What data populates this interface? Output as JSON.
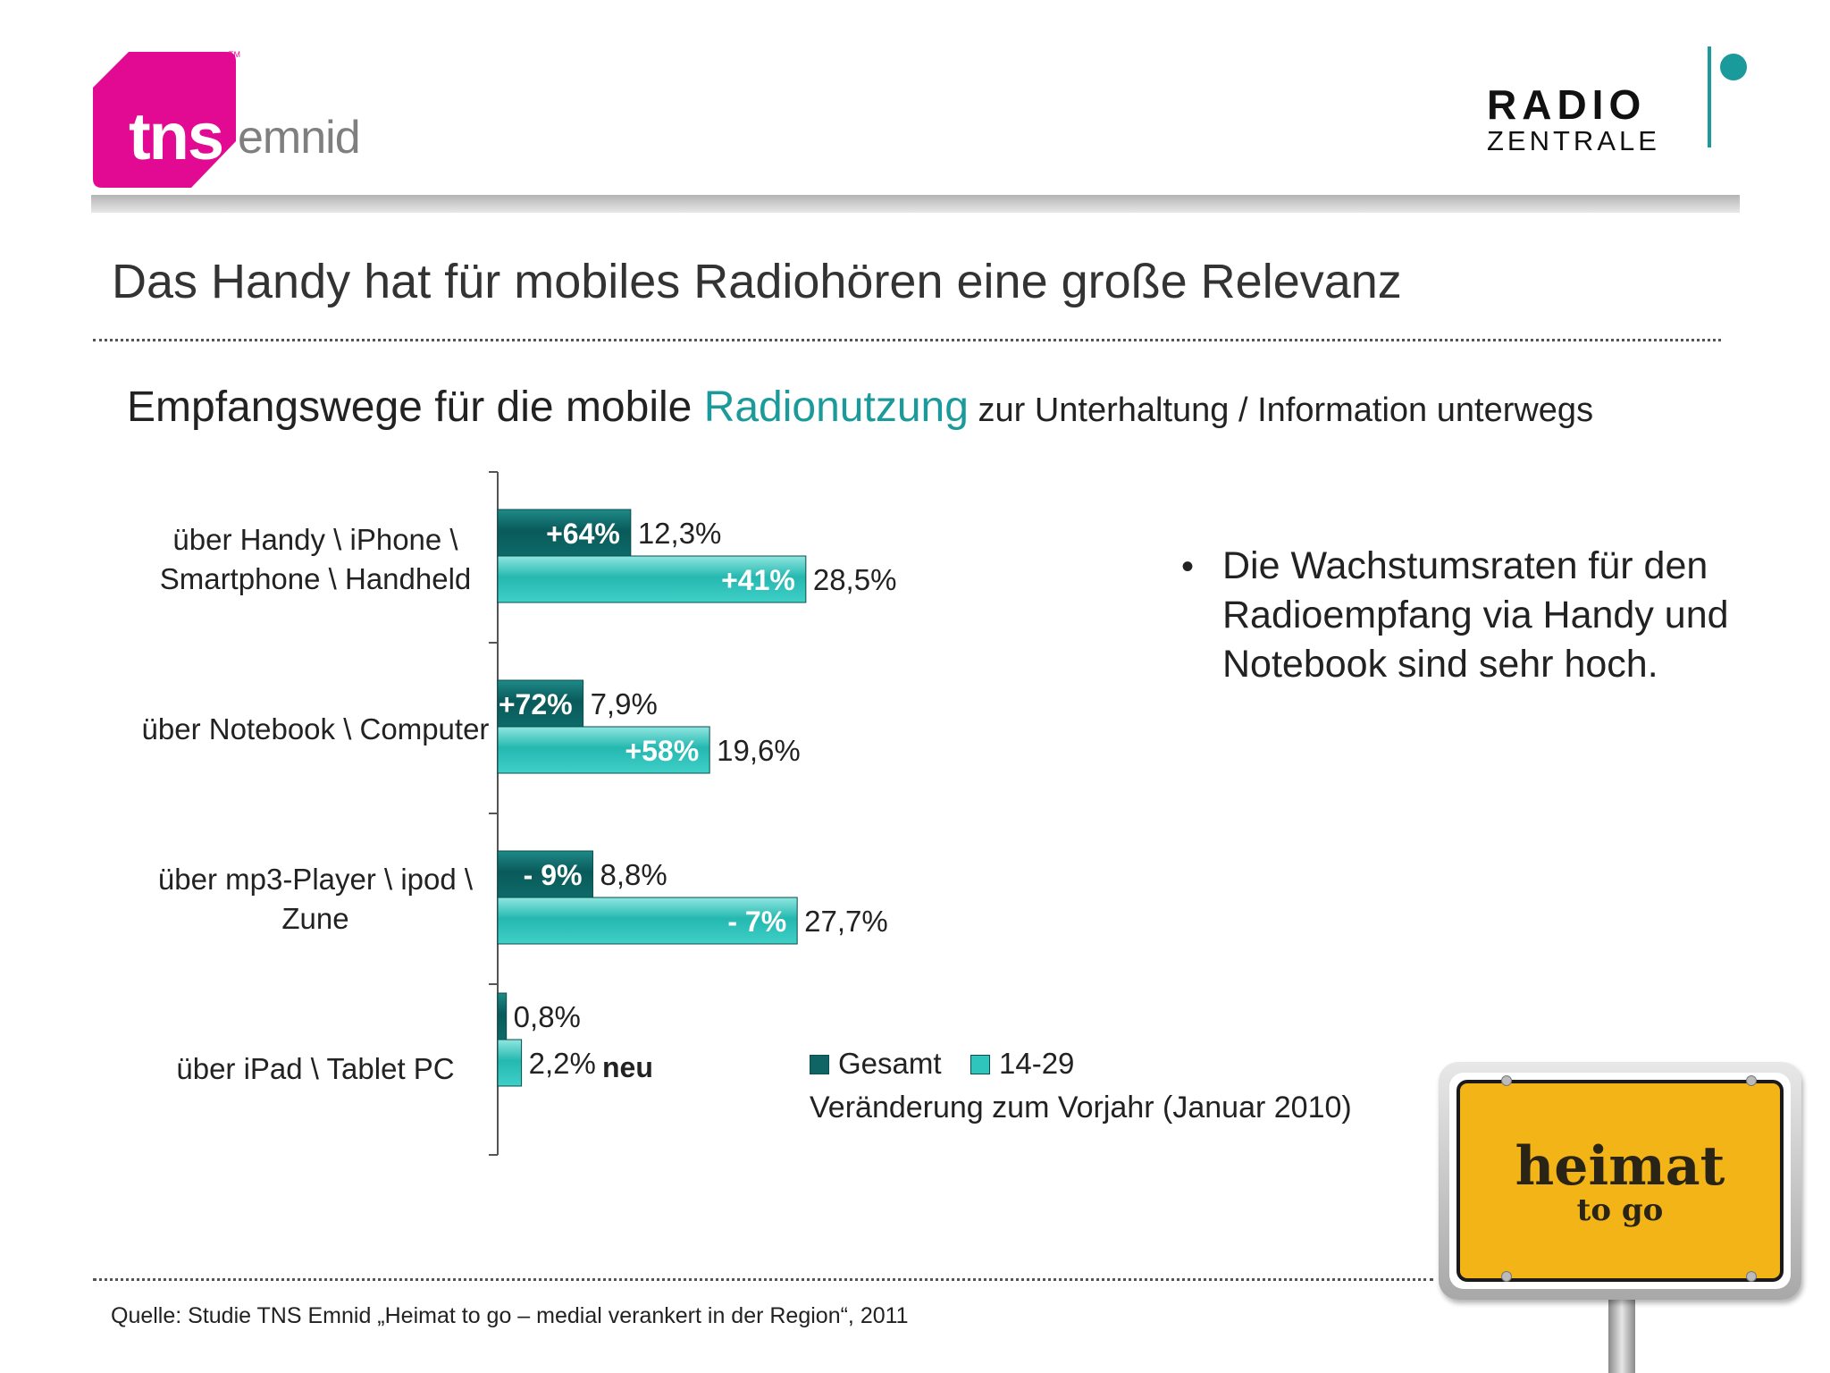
{
  "header": {
    "tns_logo_text": "tns",
    "tns_tm": "TM",
    "tns_emnid": "emnid",
    "rz_radio": "RADIO",
    "rz_zentrale": "ZENTRALE"
  },
  "title": "Das Handy hat für mobiles Radiohören eine große Relevanz",
  "subtitle": {
    "part1": "Empfangswege für die mobile ",
    "part2": "Radionutzung",
    "part3": " zur Unterhaltung / Information unterwegs"
  },
  "bullet": "Die Wachstumsraten für den Radioempfang via Handy und Notebook sind sehr hoch.",
  "neu_label": "neu",
  "change_note": "Veränderung zum Vorjahr (Januar 2010)",
  "source": "Quelle: Studie TNS Emnid „Heimat to go  – medial verankert in der Region“, 2011",
  "sign": {
    "main": "heimat",
    "sub": "to go"
  },
  "colors": {
    "gesamt": "#0f6464",
    "age": "#2fc4bc",
    "accent": "#1a9a9a",
    "tns_pink": "#e20a92"
  },
  "chart_data": {
    "type": "bar",
    "orientation": "horizontal",
    "categories": [
      [
        "über Handy \\ iPhone \\",
        "Smartphone \\ Handheld"
      ],
      [
        "über Notebook \\ Computer"
      ],
      [
        "über mp3-Player \\ ipod \\",
        "Zune"
      ],
      [
        "über iPad \\ Tablet PC"
      ]
    ],
    "series": [
      {
        "name": "Gesamt",
        "values": [
          12.3,
          7.9,
          8.8,
          0.8
        ],
        "value_labels": [
          "12,3%",
          "7,9%",
          "8,8%",
          "0,8%"
        ],
        "change_labels": [
          "+64%",
          "+72%",
          "- 9%",
          ""
        ]
      },
      {
        "name": "14-29",
        "values": [
          28.5,
          19.6,
          27.7,
          2.2
        ],
        "value_labels": [
          "28,5%",
          "19,6%",
          "27,7%",
          "2,2%"
        ],
        "change_labels": [
          "+41%",
          "+58%",
          "- 7%",
          ""
        ]
      }
    ],
    "xlim": [
      0,
      40
    ],
    "legend": "bottom-right"
  }
}
